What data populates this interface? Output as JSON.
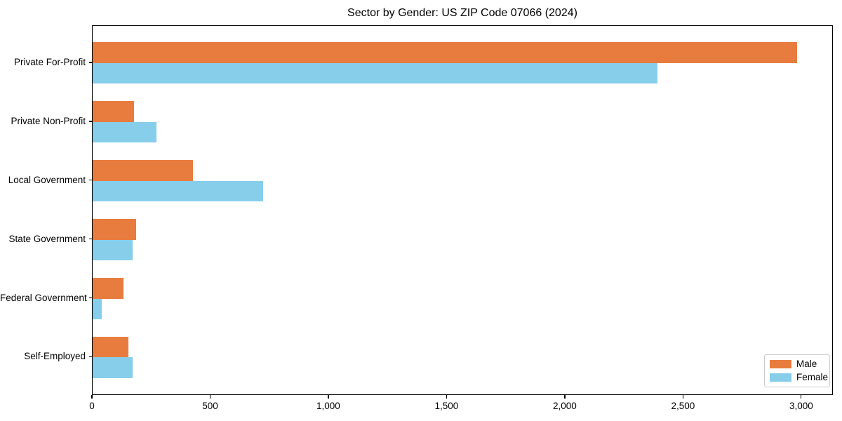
{
  "chart_data": {
    "type": "bar",
    "orientation": "horizontal",
    "title": "Sector by Gender: US ZIP Code 07066 (2024)",
    "categories": [
      "Private For-Profit",
      "Private Non-Profit",
      "Local Government",
      "State Government",
      "Federal Government",
      "Self-Employed"
    ],
    "series": [
      {
        "name": "Male",
        "color": "#E87C3E",
        "values": [
          2980,
          175,
          425,
          185,
          130,
          150
        ]
      },
      {
        "name": "Female",
        "color": "#87CEEB",
        "values": [
          2390,
          270,
          720,
          170,
          40,
          170
        ]
      }
    ],
    "xlabel": "",
    "ylabel": "",
    "xlim": [
      0,
      3134
    ],
    "xticks": [
      0,
      500,
      1000,
      1500,
      2000,
      2500,
      3000
    ],
    "xtick_labels": [
      "0",
      "500",
      "1,000",
      "1,500",
      "2,000",
      "2,500",
      "3,000"
    ],
    "grid": false,
    "legend_position": "lower right",
    "axis_color": "#000000",
    "background_color": "#ffffff"
  }
}
